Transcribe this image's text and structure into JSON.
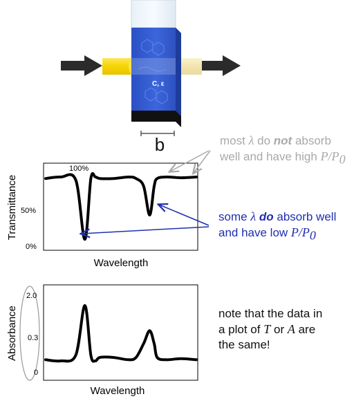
{
  "cuvette": {
    "concentration_label": "C, ε",
    "path_length_label": "b"
  },
  "notes": {
    "high_transmit": {
      "line1": "most",
      "lambda": "λ",
      "do": "do",
      "not": "not",
      "absorb": "absorb",
      "line2": "well and have high",
      "ratio": "P/P",
      "sub": "0"
    },
    "low_transmit": {
      "line1a": "some",
      "lambda": "λ",
      "do": "do",
      "absorb": "absorb well",
      "line2": "and have low",
      "ratio": "P/P",
      "sub": "0"
    },
    "same_data": {
      "line1": "note that the data in",
      "line2a": "a plot of",
      "T": "T",
      "or": "or",
      "A": "A",
      "are": "are",
      "line3": "the same!"
    }
  },
  "chart_data": [
    {
      "type": "line",
      "xlabel": "Wavelength",
      "ylabel": "Transmittance",
      "ticks": [
        "100%",
        "50%",
        "0%"
      ],
      "ylim": [
        0,
        100
      ],
      "series": [
        {
          "x": [
            0,
            0.1,
            0.2,
            0.26,
            0.3,
            0.33,
            0.36,
            0.45,
            0.55,
            0.6,
            0.65,
            0.69,
            0.72,
            0.74,
            0.8,
            0.9,
            1.0
          ],
          "values": [
            88,
            90,
            86,
            8,
            88,
            90,
            88,
            88,
            90,
            88,
            78,
            40,
            78,
            88,
            90,
            89,
            90
          ]
        }
      ]
    },
    {
      "type": "line",
      "xlabel": "Wavelength",
      "ylabel": "Absorbance",
      "ticks": [
        "2.0",
        "0.3",
        "0"
      ],
      "series": [
        {
          "x": [
            0,
            0.1,
            0.2,
            0.26,
            0.3,
            0.33,
            0.36,
            0.45,
            0.55,
            0.6,
            0.65,
            0.69,
            0.72,
            0.74,
            0.8,
            0.9,
            1.0
          ],
          "values": [
            0.1,
            0.09,
            0.14,
            1.6,
            0.14,
            0.09,
            0.12,
            0.12,
            0.1,
            0.12,
            0.24,
            0.55,
            0.24,
            0.12,
            0.1,
            0.11,
            0.1
          ]
        }
      ]
    }
  ]
}
